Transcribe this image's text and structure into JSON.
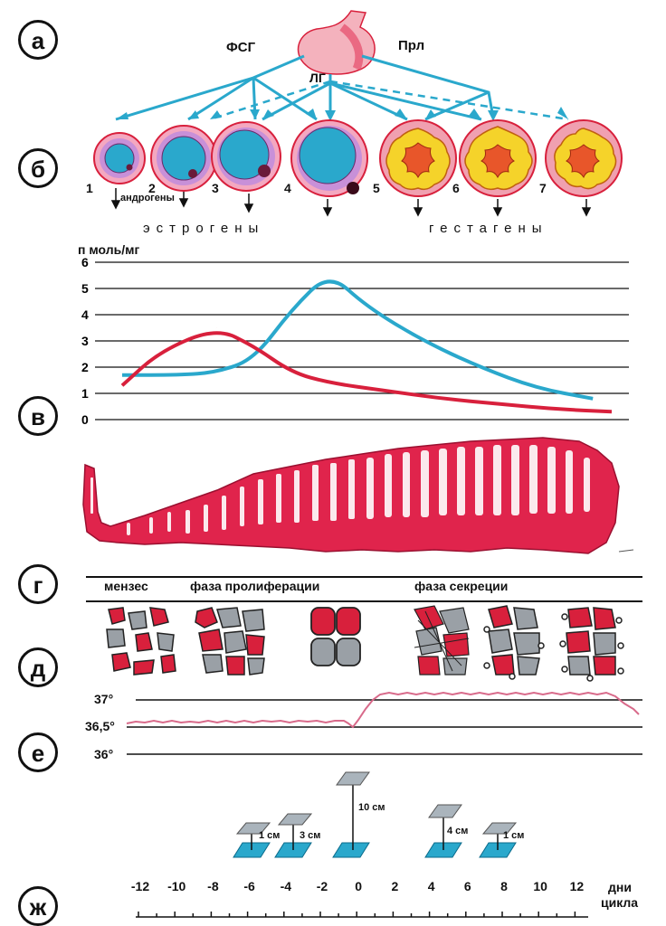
{
  "panels": [
    "а",
    "б",
    "в",
    "г",
    "д",
    "е",
    "ж"
  ],
  "hormones": {
    "fsh": "ФСГ",
    "prl": "Прл",
    "lh": "ЛГ"
  },
  "follicle_numbers": [
    "1",
    "2",
    "3",
    "4",
    "5",
    "6",
    "7"
  ],
  "androgens": "андрогены",
  "estrogens": "эстрогены",
  "gestagens": "гестагены",
  "concentration_unit": "п моль/мг",
  "chart_data": {
    "type": "line",
    "ylabel": "п моль/мг",
    "yticks": [
      "6",
      "5",
      "4",
      "3",
      "2",
      "1",
      "0"
    ],
    "ylim": [
      0,
      6
    ],
    "xlim": [
      -13,
      13
    ],
    "series": [
      {
        "color": "#2aa8cc",
        "x": [
          -13,
          -10,
          -8,
          -6,
          -4,
          -2,
          0,
          3,
          6,
          9,
          12
        ],
        "y": [
          1.7,
          1.7,
          1.8,
          2.3,
          4.2,
          5.6,
          4.3,
          3.0,
          2.0,
          1.2,
          0.8
        ]
      },
      {
        "color": "#d8203c",
        "x": [
          -13,
          -11,
          -8,
          -6,
          -4,
          -2,
          1,
          4,
          7,
          10,
          13
        ],
        "y": [
          1.3,
          2.6,
          3.5,
          2.8,
          1.8,
          1.4,
          1.1,
          0.8,
          0.6,
          0.4,
          0.3
        ]
      }
    ]
  },
  "phases": {
    "menses": "мензес",
    "proliferation": "фаза пролиферации",
    "secretion": "фаза секреции"
  },
  "temperature": {
    "ticks": [
      "37°",
      "36,5°",
      "36°"
    ]
  },
  "mucus": {
    "labels": [
      "1 см",
      "3 см",
      "10 см",
      "4 см",
      "1 см"
    ]
  },
  "days": {
    "ticks": [
      "-12",
      "-10",
      "-8",
      "-6",
      "-4",
      "-2",
      "0",
      "2",
      "4",
      "6",
      "8",
      "10",
      "12"
    ],
    "label_line1": "дни",
    "label_line2": "цикла"
  },
  "colors": {
    "blue": "#2aa8cc",
    "red": "#d8203c",
    "pink": "#f2a6b8",
    "yellow": "#f5d32a",
    "orange": "#e8562a",
    "endometrium": "#e0244c"
  }
}
